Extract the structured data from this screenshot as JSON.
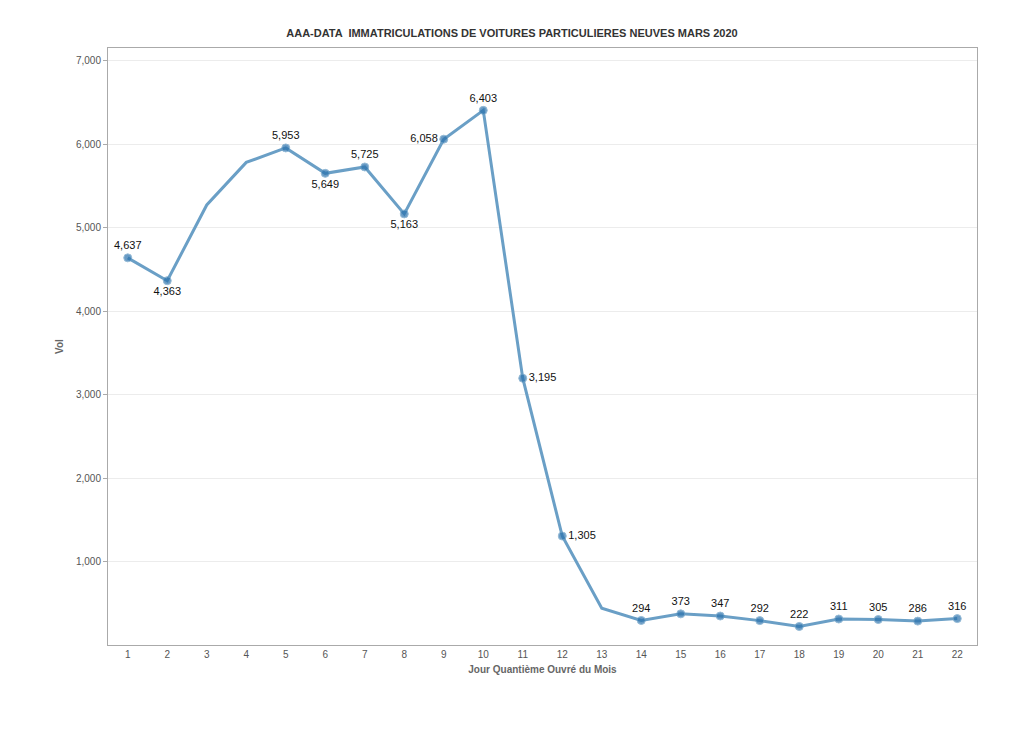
{
  "chart_data": {
    "type": "line",
    "title": "AAA-DATA  IMMATRICULATIONS DE VOITURES PARTICULIERES NEUVES MARS 2020",
    "x_label": "Jour Quantième Ouvré du Mois",
    "y_label": "Vol",
    "x": [
      1,
      2,
      3,
      4,
      5,
      6,
      7,
      8,
      9,
      10,
      11,
      12,
      13,
      14,
      15,
      16,
      17,
      18,
      19,
      20,
      21,
      22
    ],
    "values": [
      4637,
      4363,
      5270,
      5780,
      5953,
      5649,
      5725,
      5163,
      6058,
      6403,
      3195,
      1305,
      440,
      294,
      373,
      347,
      292,
      222,
      311,
      305,
      286,
      316
    ],
    "value_labels": [
      "4,637",
      "4,363",
      null,
      null,
      "5,953",
      "5,649",
      "5,725",
      "5,163",
      "6,058",
      "6,403",
      "3,195",
      "1,305",
      null,
      "294",
      "373",
      "347",
      "292",
      "222",
      "311",
      "305",
      "286",
      "316"
    ],
    "color": "#6a9fc6",
    "marker": "circle",
    "data_labels": true,
    "grid": true,
    "xlim": [
      0.5,
      22.5
    ],
    "xticks": [
      1,
      2,
      3,
      4,
      5,
      6,
      7,
      8,
      9,
      10,
      11,
      12,
      13,
      14,
      15,
      16,
      17,
      18,
      19,
      20,
      21,
      22
    ],
    "ylim": [
      0,
      7150
    ],
    "yticks": [
      {
        "value": 1000,
        "label": "1,000"
      },
      {
        "value": 2000,
        "label": "2,000"
      },
      {
        "value": 3000,
        "label": "3,000"
      },
      {
        "value": 4000,
        "label": "4,000"
      },
      {
        "value": 5000,
        "label": "5,000"
      },
      {
        "value": 6000,
        "label": "6,000"
      },
      {
        "value": 7000,
        "label": "7,000"
      }
    ]
  }
}
